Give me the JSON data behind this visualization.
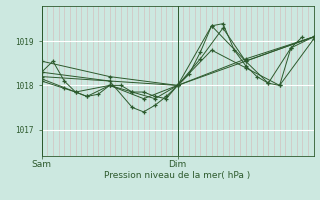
{
  "bg_color": "#cce8e0",
  "plot_bg_color": "#cce8e0",
  "line_color": "#2d5a2d",
  "grid_color_white": "#ffffff",
  "grid_color_pink": "#d4b8b8",
  "ylabel_ticks": [
    1017,
    1018,
    1019
  ],
  "ylim": [
    1016.4,
    1019.8
  ],
  "xlim": [
    0,
    48
  ],
  "xlabel": "Pression niveau de la mer( hPa )",
  "xtick_labels": [
    "Sam",
    "Dim"
  ],
  "xtick_positions": [
    0,
    24
  ],
  "series": [
    [
      0,
      1018.3,
      2,
      1018.55,
      4,
      1018.1,
      6,
      1017.85,
      8,
      1017.75,
      10,
      1017.8,
      12,
      1018.0,
      14,
      1018.0,
      16,
      1017.85,
      18,
      1017.85,
      20,
      1017.75,
      22,
      1017.7,
      24,
      1018.0,
      26,
      1018.25,
      28,
      1018.75,
      30,
      1019.35,
      32,
      1019.4,
      34,
      1018.8,
      36,
      1018.45,
      38,
      1018.2,
      40,
      1018.05,
      42,
      1018.0,
      44,
      1018.85,
      46,
      1019.1
    ],
    [
      0,
      1018.15,
      4,
      1017.95,
      8,
      1017.75,
      12,
      1018.0,
      16,
      1017.85,
      20,
      1017.7,
      24,
      1018.0,
      28,
      1018.6,
      32,
      1019.3,
      36,
      1018.55,
      40,
      1018.05,
      44,
      1018.85,
      48,
      1019.1
    ],
    [
      0,
      1018.55,
      12,
      1018.2,
      24,
      1018.0,
      36,
      1018.6,
      48,
      1019.1
    ],
    [
      0,
      1018.3,
      12,
      1018.1,
      16,
      1017.5,
      18,
      1017.4,
      20,
      1017.55,
      22,
      1017.75,
      24,
      1018.0,
      30,
      1019.35,
      36,
      1018.55,
      48,
      1019.1
    ],
    [
      0,
      1018.1,
      6,
      1017.85,
      12,
      1018.0,
      18,
      1017.7,
      24,
      1018.0,
      30,
      1018.8,
      36,
      1018.4,
      42,
      1018.0,
      48,
      1019.05
    ],
    [
      0,
      1018.2,
      24,
      1018.0,
      48,
      1019.1
    ]
  ],
  "num_minor_vlines": 49,
  "figsize": [
    3.2,
    2.0
  ],
  "dpi": 100
}
